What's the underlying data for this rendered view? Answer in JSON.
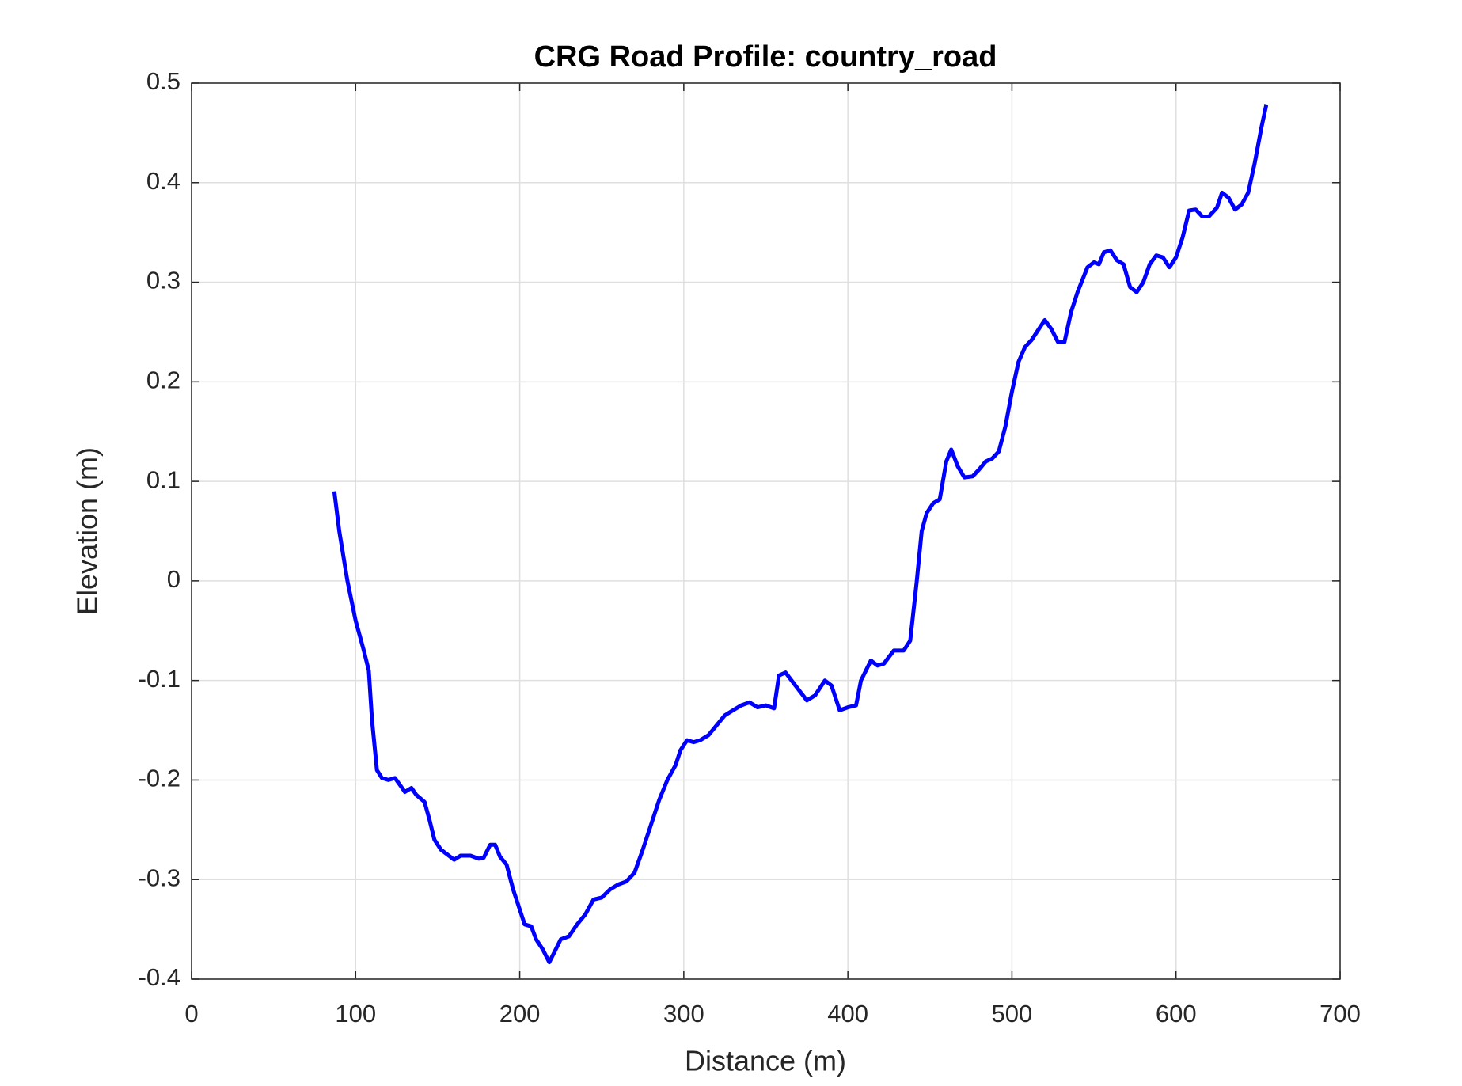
{
  "chart_data": {
    "type": "line",
    "title": "CRG Road Profile: country_road",
    "x_label": "Distance (m)",
    "y_label": "Elevation (m)",
    "x": [
      87,
      90,
      95,
      100,
      105,
      108,
      110,
      113,
      116,
      120,
      124,
      127,
      130,
      134,
      137,
      142,
      145,
      148,
      152,
      156,
      160,
      164,
      170,
      175,
      178,
      182,
      185,
      188,
      192,
      196,
      200,
      203,
      207,
      210,
      214,
      218,
      222,
      225,
      230,
      235,
      240,
      245,
      250,
      255,
      260,
      265,
      270,
      275,
      280,
      285,
      290,
      295,
      298,
      302,
      306,
      310,
      315,
      320,
      325,
      330,
      335,
      340,
      345,
      350,
      355,
      358,
      362,
      368,
      375,
      380,
      386,
      390,
      395,
      400,
      405,
      408,
      414,
      418,
      422,
      428,
      434,
      438,
      442,
      445,
      448,
      452,
      456,
      460,
      463,
      467,
      471,
      476,
      480,
      484,
      488,
      492,
      496,
      500,
      504,
      508,
      512,
      516,
      520,
      524,
      528,
      532,
      536,
      540,
      546,
      550,
      553,
      556,
      560,
      564,
      568,
      572,
      576,
      580,
      584,
      588,
      592,
      596,
      600,
      604,
      608,
      612,
      616,
      620,
      625,
      628,
      632,
      636,
      640,
      644,
      648,
      652,
      655
    ],
    "values": [
      0.09,
      0.05,
      0.0,
      -0.04,
      -0.07,
      -0.09,
      -0.14,
      -0.19,
      -0.198,
      -0.2,
      -0.198,
      -0.205,
      -0.212,
      -0.208,
      -0.215,
      -0.222,
      -0.24,
      -0.26,
      -0.27,
      -0.275,
      -0.28,
      -0.276,
      -0.276,
      -0.279,
      -0.278,
      -0.265,
      -0.265,
      -0.277,
      -0.285,
      -0.31,
      -0.33,
      -0.345,
      -0.347,
      -0.36,
      -0.37,
      -0.383,
      -0.37,
      -0.36,
      -0.357,
      -0.345,
      -0.335,
      -0.32,
      -0.318,
      -0.31,
      -0.305,
      -0.302,
      -0.293,
      -0.27,
      -0.245,
      -0.22,
      -0.2,
      -0.185,
      -0.17,
      -0.16,
      -0.162,
      -0.16,
      -0.155,
      -0.145,
      -0.135,
      -0.13,
      -0.125,
      -0.122,
      -0.127,
      -0.125,
      -0.128,
      -0.095,
      -0.092,
      -0.105,
      -0.12,
      -0.115,
      -0.1,
      -0.105,
      -0.13,
      -0.127,
      -0.125,
      -0.1,
      -0.08,
      -0.085,
      -0.083,
      -0.07,
      -0.07,
      -0.06,
      0.0,
      0.05,
      0.068,
      0.078,
      0.082,
      0.12,
      0.132,
      0.115,
      0.104,
      0.105,
      0.112,
      0.12,
      0.123,
      0.13,
      0.155,
      0.19,
      0.22,
      0.235,
      0.242,
      0.252,
      0.262,
      0.253,
      0.24,
      0.24,
      0.27,
      0.29,
      0.315,
      0.32,
      0.318,
      0.33,
      0.332,
      0.322,
      0.318,
      0.295,
      0.29,
      0.3,
      0.318,
      0.327,
      0.325,
      0.315,
      0.325,
      0.345,
      0.372,
      0.373,
      0.366,
      0.366,
      0.375,
      0.39,
      0.385,
      0.373,
      0.378,
      0.39,
      0.42,
      0.455,
      0.478
    ],
    "color": "#0000ff",
    "xlim": [
      0,
      700
    ],
    "xticks": [
      0,
      100,
      200,
      300,
      400,
      500,
      600,
      700
    ],
    "ylim": [
      -0.4,
      0.5
    ],
    "yticks": [
      -0.4,
      -0.3,
      -0.2,
      -0.1,
      0,
      0.1,
      0.2,
      0.3,
      0.4,
      0.5
    ],
    "grid": true
  }
}
